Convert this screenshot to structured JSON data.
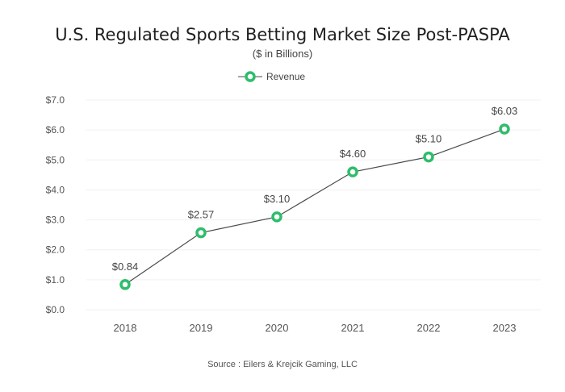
{
  "chart_data": {
    "type": "line",
    "title": "U.S. Regulated Sports Betting Market Size Post-PASPA",
    "subtitle": "($ in Billions)",
    "source": "Source : Eilers & Krejcik Gaming, LLC",
    "categories": [
      "2018",
      "2019",
      "2020",
      "2021",
      "2022",
      "2023"
    ],
    "series": [
      {
        "name": "Revenue",
        "values": [
          0.84,
          2.57,
          3.1,
          4.6,
          5.1,
          6.03
        ],
        "labels": [
          "$0.84",
          "$2.57",
          "$3.10",
          "$4.60",
          "$5.10",
          "$6.03"
        ]
      }
    ],
    "y_ticks": [
      "$0.0",
      "$1.0",
      "$2.0",
      "$3.0",
      "$4.0",
      "$5.0",
      "$6.0",
      "$7.0"
    ],
    "ylim": [
      0,
      7
    ],
    "grid": true,
    "legend_position": "top-center",
    "colors": {
      "line": "#4a4a4a",
      "marker": "#2ebd6b",
      "grid": "#f0f0f0"
    }
  }
}
